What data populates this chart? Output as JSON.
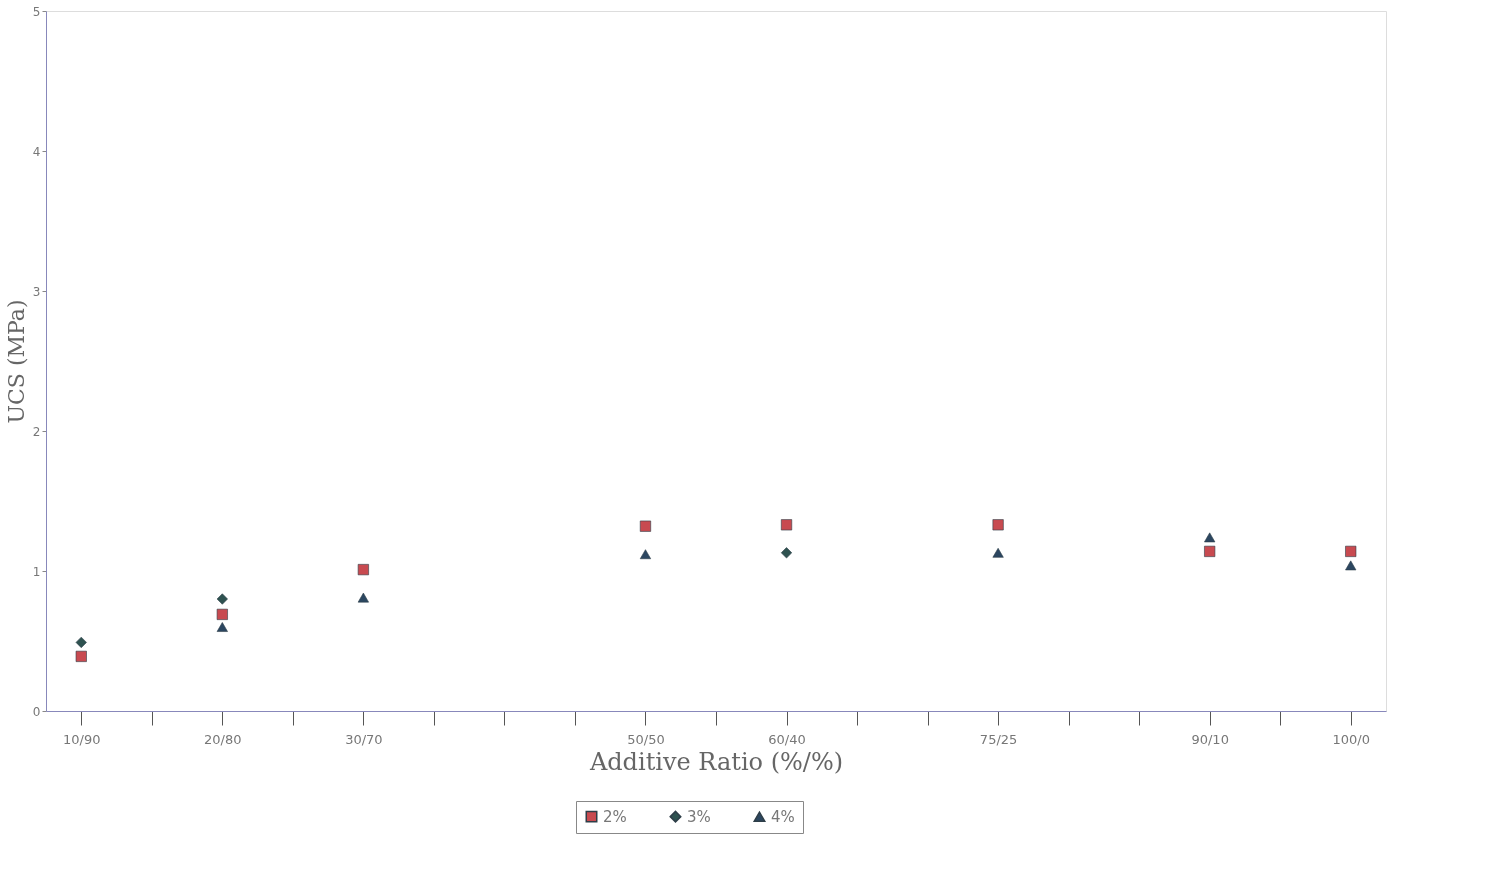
{
  "chart_data": {
    "type": "scatter",
    "xlabel": "Additive Ratio (%/%)",
    "ylabel": "UCS (MPa)",
    "categories": [
      "10/90",
      null,
      "20/80",
      null,
      "30/70",
      null,
      null,
      null,
      "50/50",
      null,
      "60/40",
      null,
      null,
      "75/25",
      null,
      null,
      "90/10",
      null,
      "100/0"
    ],
    "series": [
      {
        "name": "2%",
        "color": "#c84a50",
        "marker": "square",
        "values": [
          0.39,
          null,
          0.69,
          null,
          1.01,
          null,
          null,
          null,
          1.32,
          null,
          1.33,
          null,
          null,
          1.33,
          null,
          null,
          1.14,
          null,
          1.14
        ]
      },
      {
        "name": "3%",
        "color": "#2e5250",
        "marker": "diamond",
        "values": [
          0.49,
          null,
          0.8,
          null,
          null,
          null,
          null,
          null,
          null,
          null,
          1.13,
          null,
          null,
          null,
          null,
          null,
          null,
          null,
          null
        ]
      },
      {
        "name": "4%",
        "color": "#2b4660",
        "marker": "triangle",
        "values": [
          null,
          null,
          0.6,
          null,
          0.81,
          null,
          null,
          null,
          1.12,
          null,
          null,
          null,
          null,
          1.13,
          null,
          null,
          1.24,
          null,
          1.04
        ]
      }
    ],
    "ylim": [
      0,
      5
    ],
    "yticks": [
      0,
      1,
      2,
      3,
      4,
      5
    ],
    "grid": false,
    "legend": "bottom"
  }
}
